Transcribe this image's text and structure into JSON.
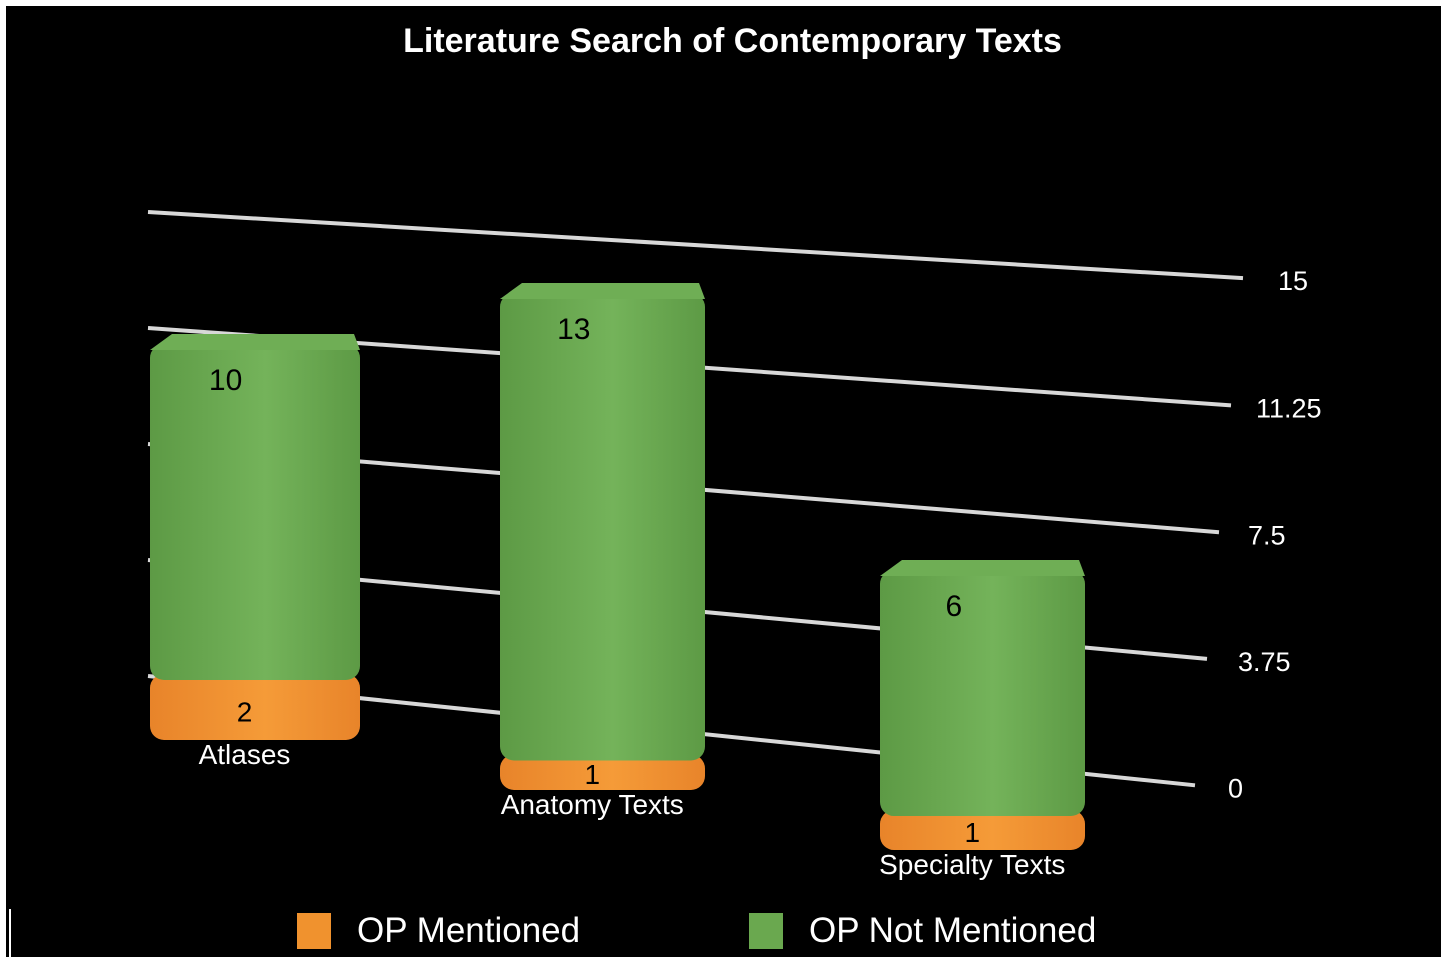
{
  "chart_data": {
    "type": "bar",
    "stacked": true,
    "title": "Literature Search of Contemporary Texts",
    "categories": [
      "Atlases",
      "Anatomy Texts",
      "Specialty Texts"
    ],
    "series": [
      {
        "name": "OP Mentioned",
        "values": [
          2,
          1,
          1
        ],
        "color": "#f0922e"
      },
      {
        "name": "OP Not Mentioned",
        "values": [
          10,
          13,
          6
        ],
        "color": "#6aa84f"
      }
    ],
    "data_labels": {
      "OP Mentioned": [
        "2",
        "1",
        "1"
      ],
      "OP Not Mentioned": [
        "10",
        "13",
        "6"
      ]
    },
    "y_ticks": [
      "0",
      "3.75",
      "7.5",
      "11.25",
      "15"
    ],
    "ylim": [
      0,
      15
    ],
    "grid": true,
    "legend_position": "bottom",
    "background": "#000000"
  }
}
